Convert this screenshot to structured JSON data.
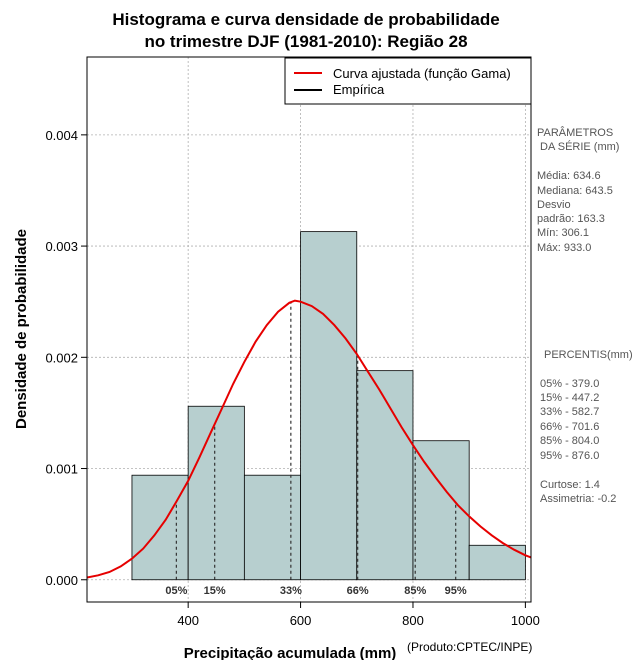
{
  "chart_data": {
    "type": "bar",
    "title_lines": [
      "Histograma e curva densidade de probabilidade",
      "no trimestre DJF (1981-2010): Região 28"
    ],
    "xlabel": "Precipitação acumulada (mm)",
    "ylabel": "Densidade de probabilidade",
    "credit": "(Produto:CPTEC/INPE)",
    "xlim": [
      220,
      1010
    ],
    "ylim": [
      -0.0002,
      0.0047
    ],
    "xticks": [
      400,
      600,
      800,
      1000
    ],
    "yticks": [
      0.0,
      0.001,
      0.002,
      0.003,
      0.004
    ],
    "ytick_labels": [
      "0.000",
      "0.001",
      "0.002",
      "0.003",
      "0.004"
    ],
    "bins": [
      {
        "start": 300,
        "end": 400,
        "density": 0.00094
      },
      {
        "start": 400,
        "end": 500,
        "density": 0.00156
      },
      {
        "start": 500,
        "end": 600,
        "density": 0.00094
      },
      {
        "start": 600,
        "end": 700,
        "density": 0.00313
      },
      {
        "start": 700,
        "end": 800,
        "density": 0.00188
      },
      {
        "start": 800,
        "end": 900,
        "density": 0.00125
      },
      {
        "start": 900,
        "end": 1000,
        "density": 0.00031
      }
    ],
    "curve": {
      "name": "Curva ajustada (função Gama)",
      "color": "#e60000",
      "x": [
        220,
        240,
        260,
        280,
        300,
        320,
        340,
        360,
        380,
        400,
        420,
        440,
        460,
        480,
        500,
        520,
        540,
        560,
        580,
        590,
        600,
        620,
        640,
        660,
        680,
        700,
        720,
        740,
        760,
        780,
        800,
        820,
        840,
        860,
        880,
        900,
        920,
        940,
        960,
        980,
        1000,
        1010
      ],
      "y": [
        2e-05,
        4e-05,
        7e-05,
        0.00012,
        0.00019,
        0.00028,
        0.0004,
        0.00054,
        0.00071,
        0.00089,
        0.0011,
        0.00132,
        0.00154,
        0.00176,
        0.00196,
        0.00214,
        0.00229,
        0.00241,
        0.00249,
        0.00251,
        0.0025,
        0.00246,
        0.00239,
        0.00229,
        0.00217,
        0.00203,
        0.00187,
        0.00171,
        0.00154,
        0.00137,
        0.00121,
        0.00106,
        0.00092,
        0.00079,
        0.00067,
        0.00057,
        0.00048,
        0.0004,
        0.00033,
        0.00027,
        0.00022,
        0.0002
      ]
    },
    "empirica": {
      "name": "Empírica",
      "color": "#000000"
    },
    "percentiles": [
      {
        "label": "05%",
        "value": 379.0
      },
      {
        "label": "15%",
        "value": 447.2
      },
      {
        "label": "33%",
        "value": 582.7
      },
      {
        "label": "66%",
        "value": 701.6
      },
      {
        "label": "85%",
        "value": 804.0
      },
      {
        "label": "95%",
        "value": 876.0
      }
    ],
    "bar_color": "#b7cfcf",
    "grid": true,
    "legend_position": "top-right"
  },
  "side_panel": {
    "params_title": [
      "PARÂMETROS",
      "DA SÉRIE (mm)"
    ],
    "params": [
      "Média:  634.6",
      "Mediana:  643.5",
      "Desvio",
      "padrão:  163.3",
      "Mín:  306.1",
      "Máx:  933.0"
    ],
    "percentis_title": "PERCENTIS(mm)",
    "percentis": [
      "05% -   379.0",
      "15% -   447.2",
      "33% -   582.7",
      "66% -   701.6",
      "85% -   804.0",
      "95% -   876.0"
    ],
    "stats": [
      "Curtose:  1.4",
      "Assimetria:  -0.2"
    ]
  }
}
